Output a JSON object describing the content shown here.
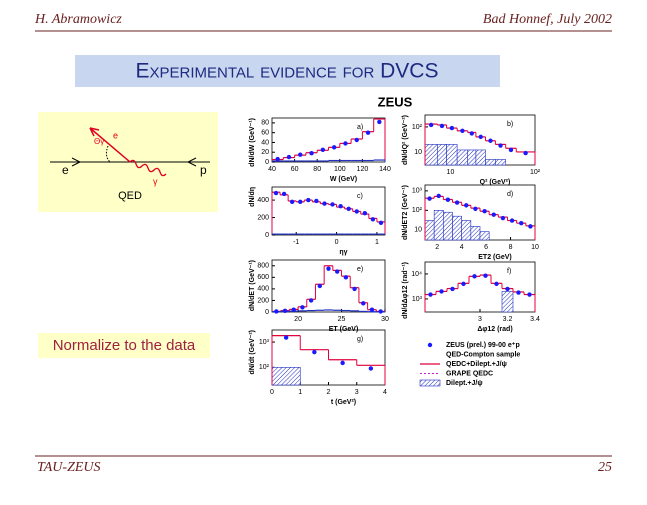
{
  "header": {
    "author": "H. Abramowicz",
    "event": "Bad Honnef, July 2002"
  },
  "title": "Experimental evidence for DVCS",
  "experiment": "ZEUS",
  "note": "Normalize to the data",
  "footer": {
    "group": "TAU-ZEUS",
    "page": "25"
  },
  "diagram": {
    "e_in": "e",
    "p": "p",
    "e_out": "e",
    "angle": "Θγ",
    "photon": "γ",
    "caption": "QED"
  },
  "legend": [
    {
      "marker": "dot",
      "color": "#1a1aff",
      "label": "ZEUS (prel.) 99-00 e⁺p"
    },
    {
      "marker": "none",
      "color": "#000000",
      "label": "QED-Compton sample"
    },
    {
      "marker": "line",
      "color": "#e0003c",
      "label": "QEDC+Dilept.+J/ψ"
    },
    {
      "marker": "dashed",
      "color": "#d020d0",
      "label": "GRAPE QEDC"
    },
    {
      "marker": "hatch",
      "color": "#2030c0",
      "label": "Dilept.+J/ψ"
    }
  ],
  "chart_data": [
    {
      "type": "histogram",
      "panel": "a)",
      "xlabel": "W (GeV)",
      "ylabel": "dN/dW (GeV⁻¹)",
      "bins": [
        40,
        50,
        60,
        70,
        80,
        90,
        100,
        110,
        120,
        130,
        140
      ],
      "xlim": [
        40,
        140
      ],
      "xticks": [
        40,
        60,
        80,
        100,
        120,
        140
      ],
      "ylim": [
        0,
        90
      ],
      "yticks": [
        0,
        20,
        40,
        60,
        80
      ],
      "xlog": false,
      "ylog": false,
      "series": [
        {
          "style": "step",
          "color": "#e0003c",
          "values": [
            5,
            9,
            14,
            19,
            24,
            30,
            38,
            47,
            62,
            88
          ]
        },
        {
          "style": "step",
          "color": "#2030c0",
          "values": [
            2,
            2,
            2,
            2,
            2,
            3,
            3,
            3,
            3,
            4
          ]
        },
        {
          "style": "points",
          "color": "#1a1aff",
          "values": [
            6,
            10,
            15,
            18,
            25,
            30,
            38,
            45,
            60,
            82
          ]
        }
      ]
    },
    {
      "type": "histogram",
      "panel": "b)",
      "xlabel": "Q² (GeV²)",
      "ylabel": "dN/dQ² (GeV⁻²)",
      "bins": [
        5,
        7,
        9,
        12,
        16,
        20,
        26,
        34,
        45,
        60,
        100
      ],
      "xlim": [
        5,
        100
      ],
      "xticks": [
        10,
        {
          "value": 100,
          "label": "10²"
        }
      ],
      "ylim": [
        3,
        300
      ],
      "yticks": [
        10,
        {
          "value": 100,
          "label": "10²"
        }
      ],
      "xlog": true,
      "ylog": true,
      "series": [
        {
          "style": "hatch",
          "color": "#2030c0",
          "values": [
            20,
            20,
            20,
            12,
            12,
            12,
            5,
            5,
            null,
            null
          ]
        },
        {
          "style": "step",
          "color": "#e0003c",
          "values": [
            130,
            120,
            90,
            70,
            60,
            40,
            28,
            20,
            14,
            10
          ]
        },
        {
          "style": "points",
          "color": "#1a1aff",
          "values": [
            120,
            110,
            90,
            70,
            55,
            40,
            28,
            18,
            12,
            9
          ]
        }
      ]
    },
    {
      "type": "histogram",
      "panel": "c)",
      "xlabel": "ηγ",
      "ylabel": "dN/dη",
      "bins": [
        -1.6,
        -1.4,
        -1.2,
        -1,
        -0.8,
        -0.6,
        -0.4,
        -0.2,
        0,
        0.2,
        0.4,
        0.6,
        0.8,
        1,
        1.2
      ],
      "xlim": [
        -1.6,
        1.2
      ],
      "xticks": [
        -1,
        0,
        1
      ],
      "ylim": [
        0,
        550
      ],
      "yticks": [
        0,
        200,
        400
      ],
      "xlog": false,
      "ylog": false,
      "series": [
        {
          "style": "step",
          "color": "#e0003c",
          "values": [
            490,
            460,
            390,
            380,
            400,
            380,
            360,
            350,
            320,
            300,
            270,
            240,
            190,
            150
          ]
        },
        {
          "style": "step",
          "color": "#2030c0",
          "values": [
            10,
            10,
            10,
            10,
            10,
            10,
            10,
            10,
            10,
            10,
            10,
            10,
            10,
            10
          ]
        },
        {
          "style": "points",
          "color": "#1a1aff",
          "values": [
            480,
            470,
            380,
            380,
            400,
            390,
            360,
            350,
            330,
            300,
            270,
            250,
            180,
            140
          ]
        }
      ]
    },
    {
      "type": "histogram",
      "panel": "d)",
      "xlabel": "ET2 (GeV)",
      "ylabel": "dN/dET2 (GeV⁻¹)",
      "bins": [
        1,
        1.75,
        2.5,
        3.25,
        4,
        4.75,
        5.5,
        6.25,
        7,
        7.75,
        8.5,
        9.25,
        10
      ],
      "xlim": [
        1,
        10
      ],
      "xticks": [
        2,
        4,
        6,
        8,
        10
      ],
      "ylim": [
        3,
        2000
      ],
      "yticks": [
        10,
        {
          "value": 100,
          "label": "10²"
        },
        {
          "value": 1000,
          "label": "10³"
        }
      ],
      "xlog": false,
      "ylog": true,
      "series": [
        {
          "style": "hatch",
          "color": "#2030c0",
          "values": [
            30,
            100,
            80,
            50,
            30,
            15,
            8,
            null,
            null,
            null,
            null,
            null
          ]
        },
        {
          "style": "step",
          "color": "#e0003c",
          "values": [
            420,
            520,
            360,
            260,
            180,
            130,
            90,
            60,
            45,
            30,
            22,
            16
          ]
        },
        {
          "style": "points",
          "color": "#1a1aff",
          "values": [
            400,
            550,
            350,
            250,
            180,
            120,
            90,
            60,
            40,
            30,
            22,
            15
          ]
        }
      ]
    },
    {
      "type": "histogram",
      "panel": "e)",
      "xlabel": "ET (GeV)",
      "ylabel": "dN/dET (GeV⁻¹)",
      "bins": [
        17,
        18,
        19,
        20,
        21,
        22,
        23,
        24,
        25,
        26,
        27,
        28,
        29,
        30
      ],
      "xlim": [
        17,
        30
      ],
      "xticks": [
        20,
        25,
        30
      ],
      "ylim": [
        0,
        900
      ],
      "yticks": [
        0,
        200,
        400,
        600,
        800
      ],
      "xlog": false,
      "ylog": false,
      "series": [
        {
          "style": "step",
          "color": "#e0003c",
          "values": [
            10,
            25,
            45,
            90,
            220,
            480,
            800,
            720,
            620,
            420,
            160,
            40,
            10
          ]
        },
        {
          "style": "step",
          "color": "#2030c0",
          "values": [
            5,
            10,
            15,
            20,
            25,
            30,
            35,
            30,
            25,
            20,
            10,
            5,
            2
          ]
        },
        {
          "style": "points",
          "color": "#1a1aff",
          "values": [
            10,
            20,
            40,
            80,
            200,
            450,
            750,
            700,
            600,
            400,
            150,
            40,
            10
          ]
        }
      ]
    },
    {
      "type": "histogram",
      "panel": "f)",
      "xlabel": "Δφ12 (rad)",
      "ylabel": "dN/dΔφ12 (rad⁻¹)",
      "bins": [
        2.6,
        2.68,
        2.76,
        2.84,
        2.92,
        3.0,
        3.08,
        3.16,
        3.24,
        3.32,
        3.4
      ],
      "xlim": [
        2.6,
        3.4
      ],
      "xticks": [
        3,
        3.2,
        3.4
      ],
      "ylim": [
        300,
        30000
      ],
      "yticks": [
        {
          "value": 1000,
          "label": "10³"
        },
        {
          "value": 10000,
          "label": "10⁴"
        }
      ],
      "xlog": false,
      "ylog": true,
      "series": [
        {
          "style": "hatch",
          "color": "#2030c0",
          "values": [
            null,
            null,
            null,
            null,
            null,
            null,
            null,
            2000,
            null,
            null
          ]
        },
        {
          "style": "step",
          "color": "#e0003c",
          "values": [
            1500,
            2000,
            2600,
            4200,
            8000,
            9000,
            4200,
            2600,
            1900,
            1500
          ]
        },
        {
          "style": "points",
          "color": "#1a1aff",
          "values": [
            1500,
            2000,
            2500,
            4000,
            8000,
            8500,
            4000,
            2500,
            1800,
            1500
          ]
        }
      ]
    },
    {
      "type": "histogram",
      "panel": "g)",
      "xlabel": "t (GeV²)",
      "ylabel": "dN/dt (GeV⁻²)",
      "bins": [
        0,
        1,
        2,
        3,
        4
      ],
      "xlim": [
        0,
        4
      ],
      "xticks": [
        0,
        1,
        2,
        3,
        4
      ],
      "ylim": [
        20,
        3000
      ],
      "yticks": [
        {
          "value": 100,
          "label": "10²"
        },
        {
          "value": 1000,
          "label": "10³"
        }
      ],
      "xlog": false,
      "ylog": true,
      "series": [
        {
          "style": "hatch",
          "color": "#2030c0",
          "values": [
            100,
            null,
            null,
            null
          ]
        },
        {
          "style": "step",
          "color": "#e0003c",
          "values": [
            1800,
            500,
            200,
            120
          ]
        },
        {
          "style": "points",
          "color": "#1a1aff",
          "values": [
            1500,
            400,
            150,
            90
          ]
        }
      ]
    }
  ]
}
